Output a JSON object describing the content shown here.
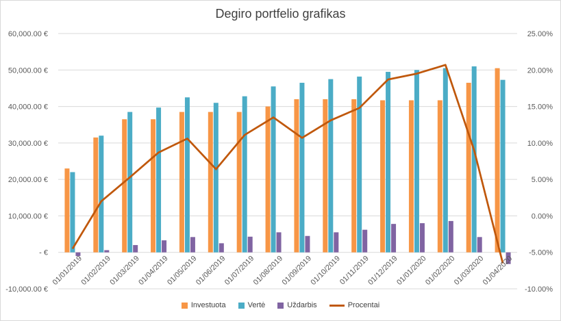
{
  "chart_data": {
    "type": "bar",
    "title": "Degiro portfelio grafikas",
    "categories": [
      "01/01/2019",
      "01/02/2019",
      "01/03/2019",
      "01/04/2019",
      "01/05/2019",
      "01/06/2019",
      "01/07/2019",
      "01/08/2019",
      "01/09/2019",
      "01/10/2019",
      "01/11/2019",
      "01/12/2019",
      "01/01/2020",
      "01/02/2020",
      "01/03/2020",
      "01/04/2020"
    ],
    "series": [
      {
        "name": "Investuota",
        "type": "bar",
        "axis": "left",
        "color": "#f79646",
        "values": [
          23000,
          31500,
          36500,
          36500,
          38500,
          38500,
          38500,
          40000,
          42000,
          42000,
          42000,
          41700,
          41700,
          41700,
          46500,
          50500
        ]
      },
      {
        "name": "Vertė",
        "type": "bar",
        "axis": "left",
        "color": "#4bacc6",
        "values": [
          22000,
          32000,
          38500,
          39700,
          42500,
          41000,
          42800,
          45500,
          46500,
          47500,
          48200,
          49500,
          50000,
          50500,
          51000,
          47300
        ]
      },
      {
        "name": "Uždarbis",
        "type": "bar",
        "axis": "left",
        "color": "#8064a2",
        "values": [
          -1000,
          600,
          2000,
          3300,
          4200,
          2500,
          4300,
          5500,
          4500,
          5500,
          6200,
          7800,
          8000,
          8600,
          4200,
          -3200
        ]
      },
      {
        "name": "Procentai",
        "type": "line",
        "axis": "right",
        "color": "#c0580c",
        "values": [
          -4.5,
          2.0,
          5.3,
          8.7,
          10.6,
          6.4,
          11.1,
          13.5,
          10.7,
          13.1,
          14.8,
          18.7,
          19.5,
          20.7,
          9.0,
          -6.5
        ]
      }
    ],
    "y_left": {
      "min": -10000,
      "max": 60000,
      "step": 10000,
      "tick_labels": [
        "-10,000.00 €",
        "-   €",
        "10,000.00 €",
        "20,000.00 €",
        "30,000.00 €",
        "40,000.00 €",
        "50,000.00 €",
        "60,000.00 €"
      ]
    },
    "y_right": {
      "min": -10,
      "max": 25,
      "step": 5,
      "tick_labels": [
        "-10.00%",
        "-5.00%",
        "0.00%",
        "5.00%",
        "10.00%",
        "15.00%",
        "20.00%",
        "25.00%"
      ]
    },
    "grid": true,
    "legend_position": "bottom"
  }
}
